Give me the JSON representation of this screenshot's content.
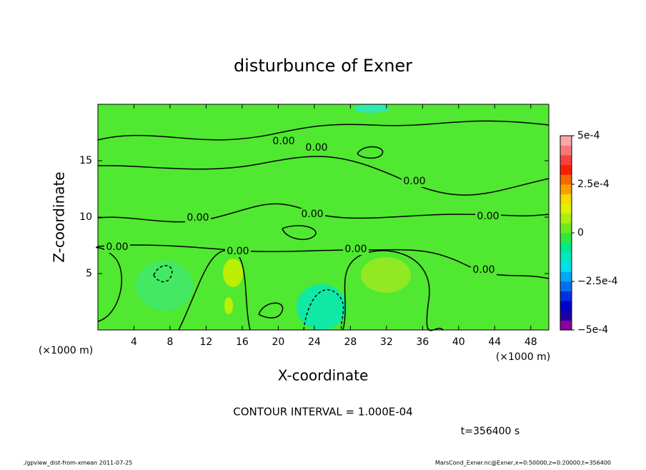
{
  "chart_data": {
    "type": "contour",
    "title": "disturbunce of Exner",
    "xlabel": "X-coordinate",
    "ylabel": "Z-coordinate",
    "x_unit": "(×1000 m)",
    "y_unit": "(×1000 m)",
    "xlim": [
      0,
      50
    ],
    "xticks": [
      4,
      8,
      12,
      16,
      20,
      24,
      28,
      32,
      36,
      40,
      44,
      48
    ],
    "ylim": [
      0,
      20
    ],
    "yticks": [
      5,
      10,
      15
    ],
    "clim": [
      -0.0005,
      0.0005
    ],
    "cticks": [
      {
        "value": 0.0005,
        "label": "5e-4"
      },
      {
        "value": 0.00025,
        "label": "2.5e-4"
      },
      0,
      {
        "value": -0.00025,
        "label": "−2.5e-4"
      },
      {
        "value": -0.0005,
        "label": "−5e-4"
      }
    ],
    "colors": [
      "#8a00a0",
      "#1c00a0",
      "#0000c8",
      "#0030e0",
      "#0070f0",
      "#00a8f8",
      "#00e0f0",
      "#00e8c0",
      "#00e890",
      "#30e840",
      "#70e820",
      "#a8f010",
      "#e0f000",
      "#f8d800",
      "#f8a000",
      "#f86800",
      "#f82000",
      "#f84040",
      "#f87878",
      "#f8a8a8"
    ],
    "contour_labels": [
      {
        "value": 0,
        "label": "0.00"
      },
      {
        "value": 0,
        "label": "0.00"
      },
      {
        "value": 0,
        "label": "0.00"
      },
      {
        "value": 0,
        "label": "0.00"
      },
      {
        "value": 0,
        "label": "0.00"
      },
      {
        "value": 0,
        "label": "0.00"
      },
      {
        "value": 0,
        "label": "0.00"
      },
      {
        "value": 0,
        "label": "0.00"
      },
      {
        "value": 0,
        "label": "0.00"
      },
      {
        "value": 0,
        "label": "0.00"
      }
    ],
    "contour_interval": "CONTOUR INTERVAL = 1.000E-04",
    "time": "t=356400 s",
    "footer_left": "./gpview_dist-from-xmean  2011-07-25",
    "footer_right": "MarsCond_Exner.nc@Exner,x=0:50000,z=0:20000,t=356400"
  }
}
